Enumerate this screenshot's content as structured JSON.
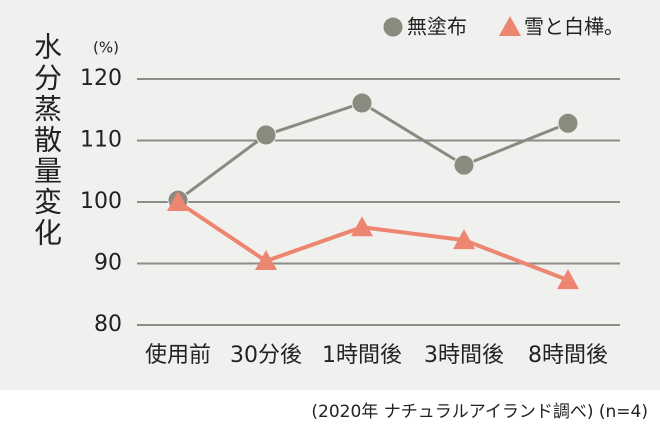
{
  "chart_data": {
    "type": "line",
    "y_label": "水分蒸散量変化",
    "unit": "(%)",
    "categories": [
      "使用前",
      "30分後",
      "1時間後",
      "3時間後",
      "8時間後"
    ],
    "series": [
      {
        "name": "無塗布",
        "color": "#8b8a7e",
        "marker": "circle",
        "values": [
          100.3,
          110.9,
          116.1,
          106,
          112.8
        ]
      },
      {
        "name": "雪と白樺。",
        "color": "#ec8670",
        "marker": "triangle",
        "values": [
          100,
          90.4,
          95.9,
          93.8,
          87.3
        ]
      }
    ],
    "ylim": [
      80,
      120
    ],
    "yticks": [
      80,
      90,
      100,
      110,
      120
    ],
    "grid": true,
    "note": "(2020年 ナチュラルアイランド調べ) (n=4)"
  }
}
